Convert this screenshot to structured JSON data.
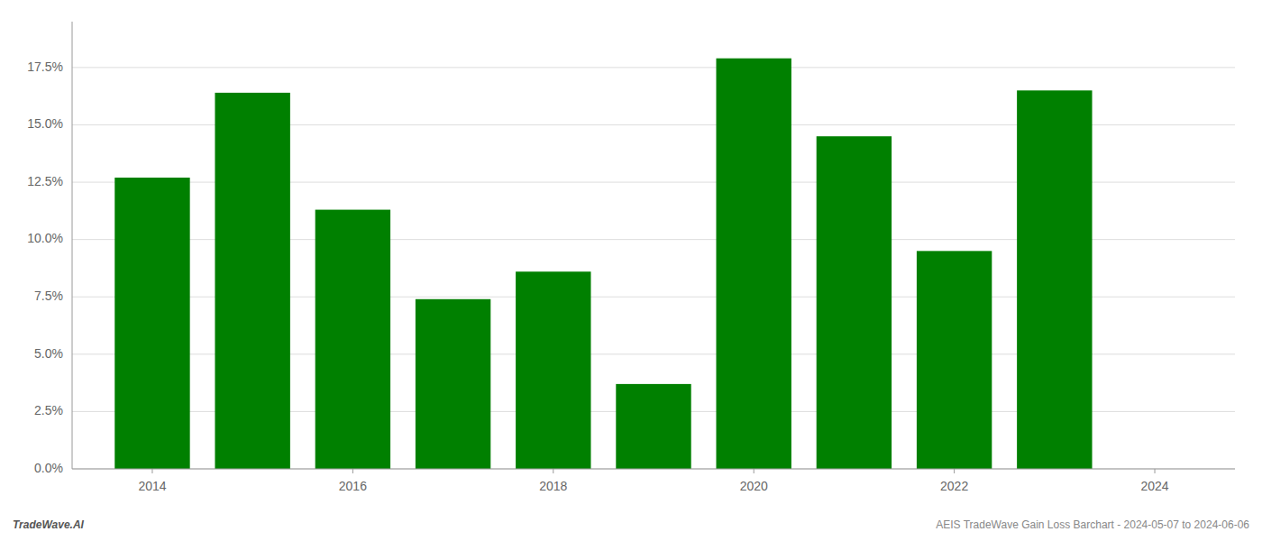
{
  "chart_data": {
    "type": "bar",
    "x": [
      2014,
      2015,
      2016,
      2017,
      2018,
      2019,
      2020,
      2021,
      2022,
      2023
    ],
    "values": [
      0.127,
      0.164,
      0.113,
      0.074,
      0.086,
      0.037,
      0.179,
      0.145,
      0.095,
      0.165
    ],
    "color": "#008000",
    "xlim": [
      2013.2,
      2024.8
    ],
    "xticks": [
      2014,
      2016,
      2018,
      2020,
      2022,
      2024
    ],
    "ylim": [
      0,
      0.195
    ],
    "yticks": [
      {
        "value": 0.0,
        "label": "0.0%"
      },
      {
        "value": 0.025,
        "label": "2.5%"
      },
      {
        "value": 0.05,
        "label": "5.0%"
      },
      {
        "value": 0.075,
        "label": "7.5%"
      },
      {
        "value": 0.1,
        "label": "10.0%"
      },
      {
        "value": 0.125,
        "label": "12.5%"
      },
      {
        "value": 0.15,
        "label": "15.0%"
      },
      {
        "value": 0.175,
        "label": "17.5%"
      }
    ],
    "grid": true,
    "annotations": [
      "TradeWave.AI",
      "AEIS TradeWave Gain Loss Barchart - 2024-05-07 to 2024-06-06"
    ]
  }
}
